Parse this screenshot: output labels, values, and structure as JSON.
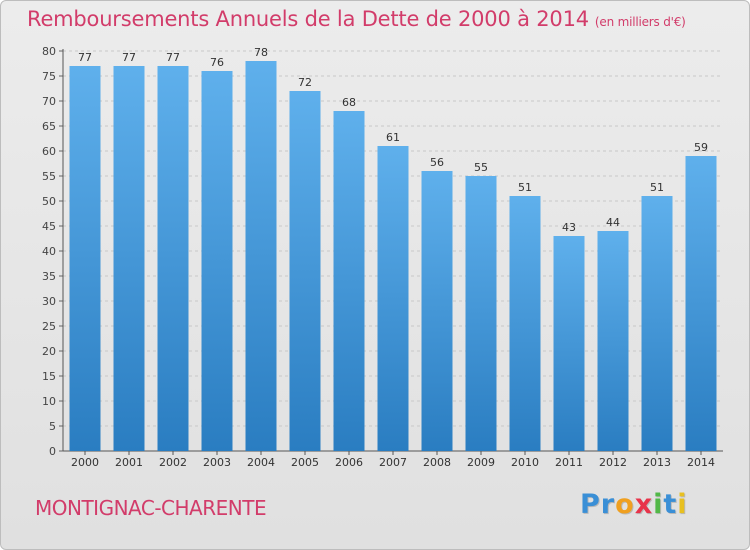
{
  "chart_data": {
    "type": "bar",
    "title": "Remboursements Annuels de la Dette de 2000 à 2014",
    "subtitle": "(en milliers d'€)",
    "categories": [
      "2000",
      "2001",
      "2002",
      "2003",
      "2004",
      "2005",
      "2006",
      "2007",
      "2008",
      "2009",
      "2010",
      "2011",
      "2012",
      "2013",
      "2014"
    ],
    "values": [
      77,
      77,
      77,
      76,
      78,
      72,
      68,
      61,
      56,
      55,
      51,
      43,
      44,
      51,
      59
    ],
    "ylim": [
      0,
      80
    ],
    "yticks": [
      0,
      5,
      10,
      15,
      20,
      25,
      30,
      35,
      40,
      45,
      50,
      55,
      60,
      65,
      70,
      75,
      80
    ],
    "grid": true,
    "xlabel": "",
    "ylabel": ""
  },
  "footer": {
    "commune": "MONTIGNAC-CHARENTE"
  },
  "brand": {
    "letters": [
      {
        "ch": "P",
        "color": "#3a8fd6"
      },
      {
        "ch": "r",
        "color": "#3a8fd6"
      },
      {
        "ch": "o",
        "color": "#f0a020"
      },
      {
        "ch": "x",
        "color": "#e8344a"
      },
      {
        "ch": "i",
        "color": "#52b848"
      },
      {
        "ch": "t",
        "color": "#3a8fd6"
      },
      {
        "ch": "i",
        "color": "#e8c020"
      }
    ]
  },
  "colors": {
    "accent": "#d23c6a",
    "bar_top": "#5fb0ec",
    "bar_bottom": "#2a7dc1"
  }
}
